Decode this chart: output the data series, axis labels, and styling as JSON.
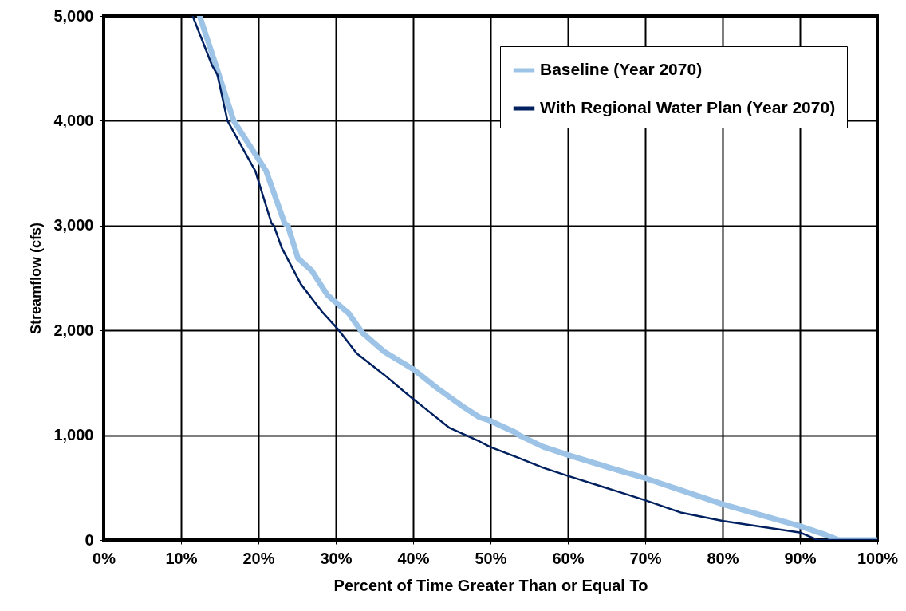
{
  "chart_data": {
    "type": "line",
    "xlabel": "Percent of Time Greater Than or Equal To",
    "ylabel": "Streamflow (cfs)",
    "xlim": [
      0,
      100
    ],
    "ylim": [
      0,
      5000
    ],
    "xticks": [
      {
        "value": 0,
        "label": "0%"
      },
      {
        "value": 10,
        "label": "10%"
      },
      {
        "value": 20,
        "label": "20%"
      },
      {
        "value": 30,
        "label": "30%"
      },
      {
        "value": 40,
        "label": "40%"
      },
      {
        "value": 50,
        "label": "50%"
      },
      {
        "value": 60,
        "label": "60%"
      },
      {
        "value": 70,
        "label": "70%"
      },
      {
        "value": 80,
        "label": "80%"
      },
      {
        "value": 90,
        "label": "90%"
      },
      {
        "value": 100,
        "label": "100%"
      }
    ],
    "yticks": [
      0,
      {
        "value": 1000,
        "label": "1,000"
      },
      {
        "value": 2000,
        "label": "2,000"
      },
      {
        "value": 3000,
        "label": "3,000"
      },
      {
        "value": 4000,
        "label": "4,000"
      },
      {
        "value": 5000,
        "label": "5,000"
      }
    ],
    "grid": true,
    "legend": "top right",
    "marker": "none",
    "line_style": "solid",
    "series": [
      {
        "name": "Baseline (Year 2070)",
        "color": "#9dc3e6",
        "x": [
          12.4,
          14.5,
          16.8,
          21.0,
          23.4,
          23.8,
          25.1,
          26.9,
          28.9,
          31.7,
          33.4,
          36.2,
          40.0,
          43.1,
          46.5,
          48.6,
          49.9,
          53.4,
          53.7,
          56.8,
          60.1,
          65.4,
          70.0,
          80.1,
          90.1,
          93.3,
          95.0,
          100
        ],
        "values": [
          5000,
          4530,
          4000,
          3520,
          3020,
          3000,
          2690,
          2570,
          2340,
          2160,
          1980,
          1800,
          1630,
          1450,
          1270,
          1170,
          1140,
          1020,
          1000,
          890,
          810,
          690,
          590,
          340,
          130,
          50,
          0,
          0
        ]
      },
      {
        "name": "With Regional Water Plan (Year 2070)",
        "color": "#002060",
        "x": [
          11.5,
          14.0,
          14.7,
          16.0,
          19.6,
          21.7,
          22.0,
          23.0,
          25.5,
          28.2,
          30.3,
          32.7,
          36.2,
          39.6,
          41.3,
          44.7,
          48.6,
          49.9,
          53.4,
          56.8,
          60.1,
          70.0,
          74.7,
          80.1,
          90.1,
          92.3,
          100
        ],
        "values": [
          5000,
          4530,
          4440,
          4000,
          3520,
          3020,
          3000,
          2790,
          2440,
          2180,
          2010,
          1780,
          1580,
          1370,
          1270,
          1070,
          940,
          890,
          790,
          690,
          610,
          380,
          260,
          180,
          70,
          0,
          0
        ]
      }
    ]
  }
}
